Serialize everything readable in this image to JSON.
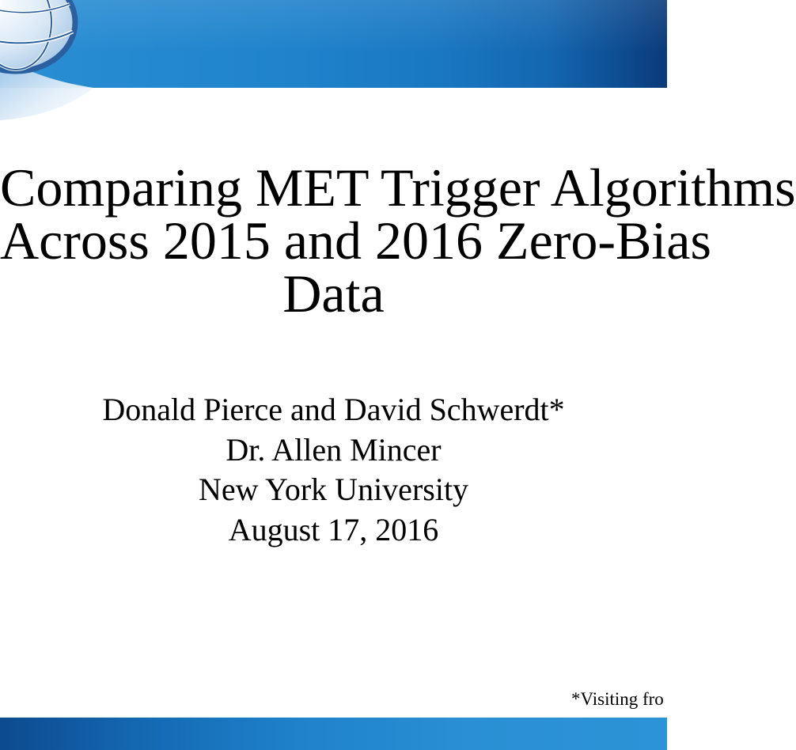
{
  "slide": {
    "title_lines": [
      "Comparing MET Trigger Algorithms",
      "Across 2015 and 2016 Zero-Bias",
      "Data"
    ],
    "subtitle_lines": [
      "Donald Pierce and David Schwerdt*",
      "Dr. Allen Mincer",
      "New York University",
      "August 17, 2016"
    ],
    "footnote": "*Visiting fro",
    "logo": "globe-logo-icon"
  },
  "colors": {
    "header_blue": "#1f82cb",
    "header_dark": "#0a3a78",
    "text": "#000000",
    "background": "#ffffff"
  }
}
